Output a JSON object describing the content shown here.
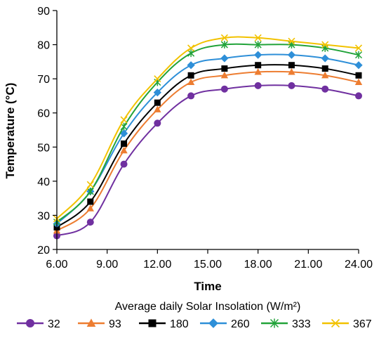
{
  "chart_data": {
    "type": "line",
    "xlabel": "Time",
    "ylabel": "Temperature (°C)",
    "xlim": [
      6,
      24
    ],
    "ylim": [
      20,
      90
    ],
    "x_ticks": [
      6,
      9,
      12,
      15,
      18,
      21,
      24
    ],
    "x_tick_labels": [
      "6.00",
      "9.00",
      "12.00",
      "15.00",
      "18.00",
      "21.00",
      "24.00"
    ],
    "y_ticks": [
      20,
      30,
      40,
      50,
      60,
      70,
      80,
      90
    ],
    "y_tick_labels": [
      "20",
      "30",
      "40",
      "50",
      "60",
      "70",
      "80",
      "90"
    ],
    "grid": false,
    "legend_title": "Average daily Solar Insolation (W/m²)",
    "legend_position": "bottom",
    "x": [
      6,
      8,
      10,
      12,
      14,
      16,
      18,
      20,
      22,
      24
    ],
    "series": [
      {
        "name": "32",
        "color": "#7030A0",
        "marker": "circle",
        "values": [
          24,
          28,
          45,
          57,
          65,
          67,
          68,
          68,
          67,
          65
        ]
      },
      {
        "name": "93",
        "color": "#ED7D31",
        "marker": "triangle",
        "values": [
          25.5,
          32,
          49,
          61,
          69,
          71,
          72,
          72,
          71,
          69
        ]
      },
      {
        "name": "180",
        "color": "#000000",
        "marker": "square",
        "values": [
          26.5,
          34,
          51,
          63,
          71,
          73,
          74,
          74,
          73,
          71
        ]
      },
      {
        "name": "260",
        "color": "#2E8FD8",
        "marker": "diamond",
        "values": [
          27.5,
          37,
          54,
          66,
          74,
          76,
          77,
          77,
          76,
          74
        ]
      },
      {
        "name": "333",
        "color": "#22A33A",
        "marker": "star",
        "values": [
          28,
          37,
          56,
          69,
          77.5,
          80,
          80,
          80,
          79,
          77
        ]
      },
      {
        "name": "367",
        "color": "#F2C200",
        "marker": "x",
        "values": [
          29,
          39,
          58,
          70,
          79,
          82,
          82,
          81,
          80,
          79
        ]
      }
    ]
  }
}
